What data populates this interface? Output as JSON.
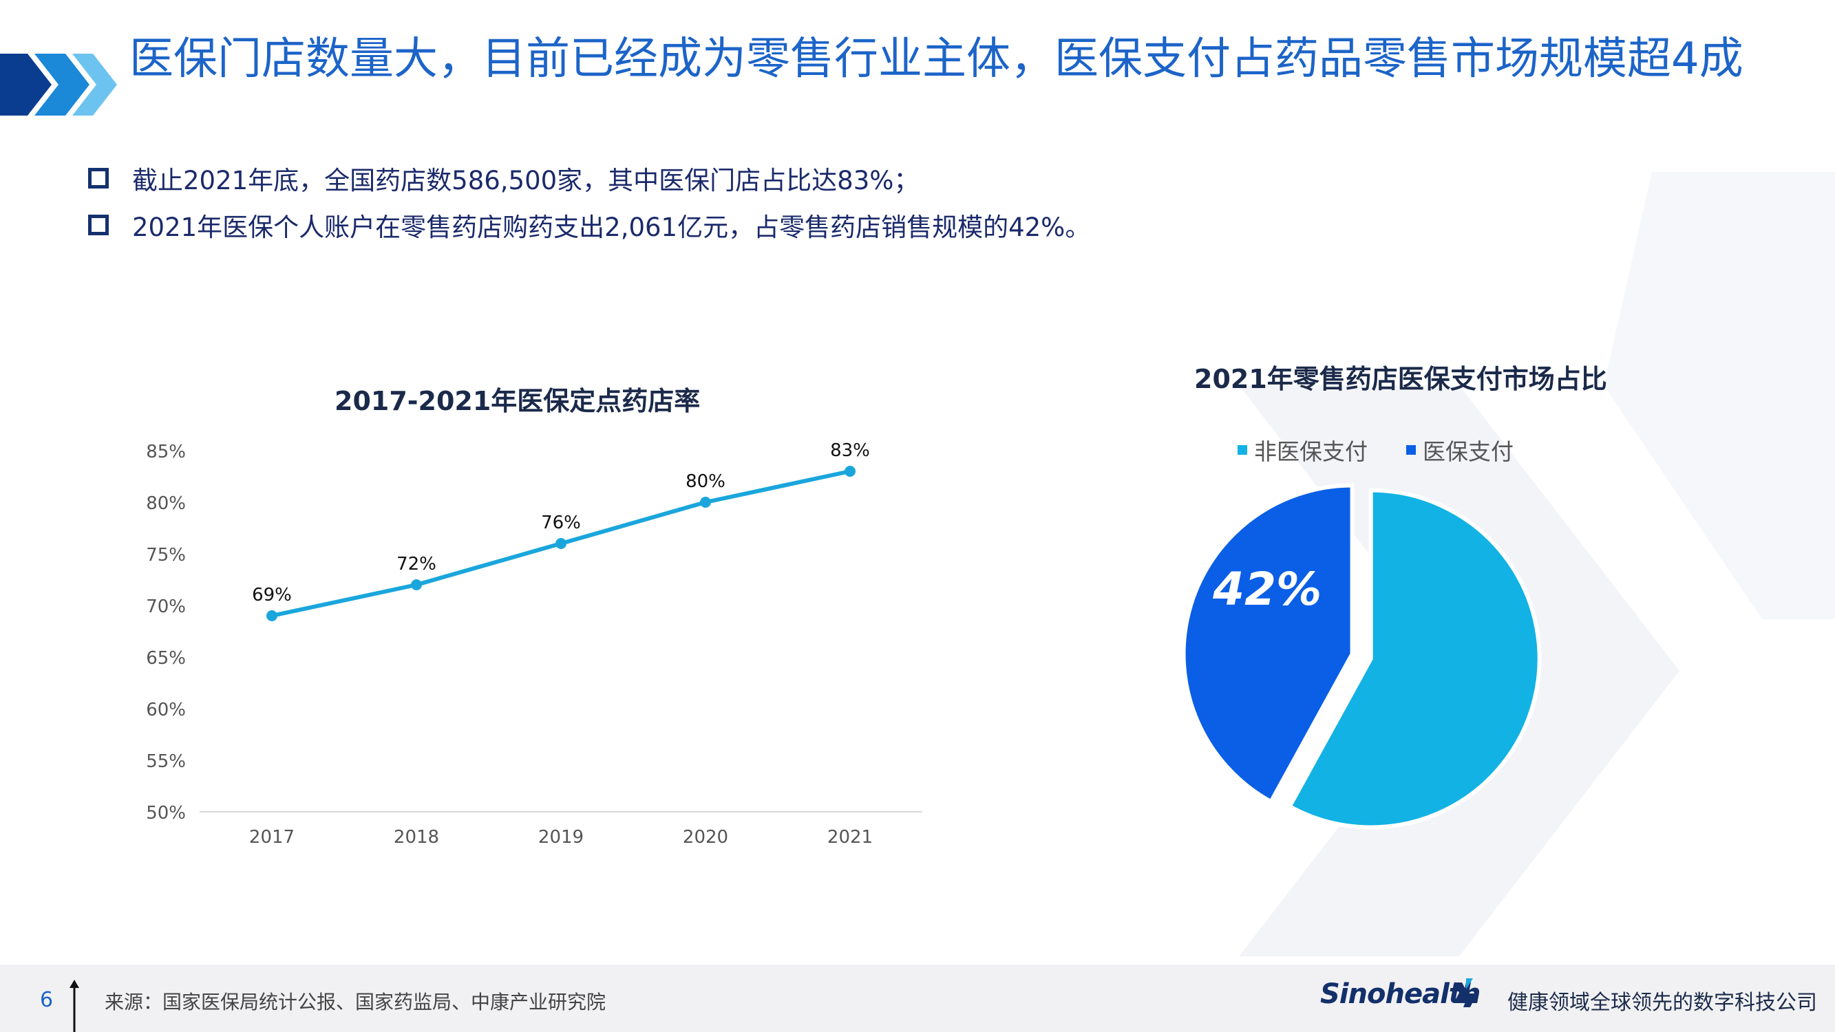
{
  "header": {
    "title": "医保门店数量大，目前已经成为零售行业主体，医保支付占药品零售市场规模超4成"
  },
  "bullets": [
    "截止2021年底，全国药店数586,500家，其中医保门店占比达83%；",
    "2021年医保个人账户在零售药店购药支出2,061亿元，占零售药店销售规模的42%。"
  ],
  "colors": {
    "title": "#1c64c8",
    "line": "#1aa6dc",
    "pie_non_insurance": "#12b2e4",
    "pie_insurance": "#0a5fe6"
  },
  "chart_data": [
    {
      "type": "line",
      "title": "2017-2021年医保定点药店率",
      "categories": [
        "2017",
        "2018",
        "2019",
        "2020",
        "2021"
      ],
      "series": [
        {
          "values": [
            69,
            72,
            76,
            80,
            83
          ]
        }
      ],
      "data_labels": [
        "69%",
        "72%",
        "76%",
        "80%",
        "83%"
      ],
      "ylim": [
        50,
        85
      ],
      "y_ticks": [
        "85%",
        "80%",
        "75%",
        "70%",
        "65%",
        "60%",
        "55%",
        "50%"
      ],
      "grid": false
    },
    {
      "type": "pie",
      "title": "2021年零售药店医保支付市场占比",
      "legend_position": "top",
      "slices": [
        {
          "name": "非医保支付",
          "value": 58
        },
        {
          "name": "医保支付",
          "value": 42
        }
      ],
      "data_label": "42%"
    }
  ],
  "footer": {
    "page_number": "6",
    "source": "来源：国家医保局统计公报、国家药监局、中康产业研究院",
    "logo": "Sinohealth",
    "tagline": "健康领域全球领先的数字科技公司"
  }
}
